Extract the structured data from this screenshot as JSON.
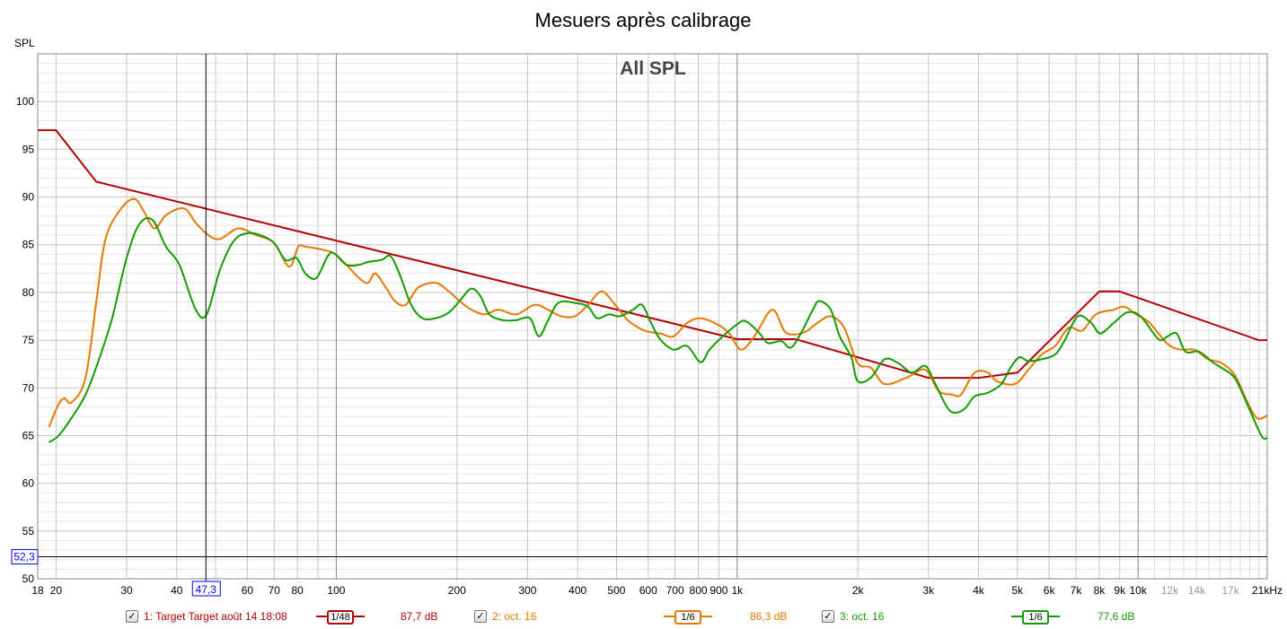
{
  "chart_data": {
    "type": "line",
    "title": "Mesuers après calibrage",
    "subtitle": "All SPL",
    "ylabel": "SPL",
    "xlabel": "Hz",
    "xscale": "log",
    "xlim": [
      18,
      21000
    ],
    "ylim": [
      50,
      105
    ],
    "grid": true,
    "y_ticks": [
      "50",
      "55",
      "60",
      "65",
      "70",
      "75",
      "80",
      "85",
      "90",
      "95",
      "100"
    ],
    "x_ticks": [
      {
        "f": 18,
        "label": "18"
      },
      {
        "f": 20,
        "label": "20"
      },
      {
        "f": 30,
        "label": "30"
      },
      {
        "f": 40,
        "label": "40"
      },
      {
        "f": 60,
        "label": "60"
      },
      {
        "f": 70,
        "label": "70"
      },
      {
        "f": 80,
        "label": "80"
      },
      {
        "f": 100,
        "label": "100"
      },
      {
        "f": 200,
        "label": "200"
      },
      {
        "f": 300,
        "label": "300"
      },
      {
        "f": 400,
        "label": "400"
      },
      {
        "f": 500,
        "label": "500"
      },
      {
        "f": 600,
        "label": "600"
      },
      {
        "f": 700,
        "label": "700"
      },
      {
        "f": 800,
        "label": "800"
      },
      {
        "f": 900,
        "label": "900"
      },
      {
        "f": 1000,
        "label": "1k"
      },
      {
        "f": 2000,
        "label": "2k"
      },
      {
        "f": 3000,
        "label": "3k"
      },
      {
        "f": 4000,
        "label": "4k"
      },
      {
        "f": 5000,
        "label": "5k"
      },
      {
        "f": 6000,
        "label": "6k"
      },
      {
        "f": 7000,
        "label": "7k"
      },
      {
        "f": 8000,
        "label": "8k"
      },
      {
        "f": 9000,
        "label": "9k"
      },
      {
        "f": 10000,
        "label": "10k"
      },
      {
        "f": 12000,
        "label": "12k",
        "muted": true
      },
      {
        "f": 14000,
        "label": "14k",
        "muted": true
      },
      {
        "f": 17000,
        "label": "17k",
        "muted": true
      },
      {
        "f": 21000,
        "label": "21kHz"
      }
    ],
    "cursor": {
      "x": 47.3,
      "y": 52.3,
      "x_label": "47,3",
      "y_label": "52,3"
    },
    "series": [
      {
        "name": "1: Target Target août 14 18:08",
        "color": "#b40000",
        "smoothing": "1/48",
        "value_label": "87,7 dB",
        "smooth": false,
        "points": [
          [
            18,
            97
          ],
          [
            20,
            97
          ],
          [
            25.2,
            91.6
          ],
          [
            1000,
            75.1
          ],
          [
            1400,
            75.1
          ],
          [
            3000,
            71.05
          ],
          [
            4000,
            71.05
          ],
          [
            5000,
            71.6
          ],
          [
            8000,
            80.1
          ],
          [
            9000,
            80.1
          ],
          [
            20000,
            75
          ],
          [
            21000,
            75
          ]
        ]
      },
      {
        "name": "2: oct. 16",
        "color": "#e87800",
        "smoothing": "1/6",
        "value_label": "86,3 dB",
        "smooth": true,
        "points": [
          [
            19.2,
            65.9
          ],
          [
            20.3,
            68.3
          ],
          [
            21,
            68.9
          ],
          [
            21.9,
            68.5
          ],
          [
            23.7,
            71.1
          ],
          [
            25.3,
            79.6
          ],
          [
            26.6,
            85.7
          ],
          [
            29.1,
            88.8
          ],
          [
            31.4,
            89.8
          ],
          [
            33.1,
            88.5
          ],
          [
            35.2,
            86.7
          ],
          [
            37.6,
            88.1
          ],
          [
            41.7,
            88.8
          ],
          [
            44.6,
            87.3
          ],
          [
            48,
            86
          ],
          [
            51.3,
            85.6
          ],
          [
            56.9,
            86.7
          ],
          [
            63.1,
            86
          ],
          [
            69.9,
            85.2
          ],
          [
            76.3,
            82.7
          ],
          [
            80.4,
            84.8
          ],
          [
            83.7,
            84.8
          ],
          [
            91.9,
            84.5
          ],
          [
            98.7,
            84.1
          ],
          [
            106,
            82.9
          ],
          [
            114,
            81.5
          ],
          [
            120,
            81
          ],
          [
            125,
            82
          ],
          [
            133,
            80.5
          ],
          [
            140,
            79.1
          ],
          [
            149,
            78.7
          ],
          [
            160,
            80.5
          ],
          [
            177,
            81
          ],
          [
            191,
            80.1
          ],
          [
            203,
            79.1
          ],
          [
            217,
            78.2
          ],
          [
            235,
            77.7
          ],
          [
            254,
            78.2
          ],
          [
            281,
            77.7
          ],
          [
            312,
            78.7
          ],
          [
            337,
            78.2
          ],
          [
            364,
            77.5
          ],
          [
            394,
            77.5
          ],
          [
            425,
            78.7
          ],
          [
            459,
            80.1
          ],
          [
            496,
            78.7
          ],
          [
            536,
            77
          ],
          [
            588,
            76
          ],
          [
            642,
            75.7
          ],
          [
            694,
            75.4
          ],
          [
            750,
            76.8
          ],
          [
            810,
            77.3
          ],
          [
            898,
            76.6
          ],
          [
            956,
            75.7
          ],
          [
            1022,
            74
          ],
          [
            1104,
            75.4
          ],
          [
            1224,
            78.2
          ],
          [
            1322,
            75.8
          ],
          [
            1466,
            75.8
          ],
          [
            1585,
            76.8
          ],
          [
            1712,
            77.5
          ],
          [
            1849,
            76.3
          ],
          [
            1998,
            72.6
          ],
          [
            2158,
            72.1
          ],
          [
            2333,
            70.4
          ],
          [
            2655,
            71.1
          ],
          [
            2943,
            71.9
          ],
          [
            3179,
            69.7
          ],
          [
            3434,
            69.3
          ],
          [
            3618,
            69.3
          ],
          [
            3909,
            71.6
          ],
          [
            4223,
            71.6
          ],
          [
            4446,
            70.7
          ],
          [
            4929,
            70.4
          ],
          [
            5326,
            71.9
          ],
          [
            5753,
            73.5
          ],
          [
            6216,
            74.4
          ],
          [
            6717,
            76.3
          ],
          [
            7257,
            76
          ],
          [
            7841,
            77.7
          ],
          [
            8696,
            78.2
          ],
          [
            9249,
            78.5
          ],
          [
            9891,
            77.7
          ],
          [
            10683,
            76.8
          ],
          [
            11846,
            74.6
          ],
          [
            12802,
            74
          ],
          [
            13828,
            74
          ],
          [
            14944,
            73
          ],
          [
            16144,
            72.6
          ],
          [
            17442,
            71.3
          ],
          [
            18846,
            68.3
          ],
          [
            19847,
            66.8
          ],
          [
            21002,
            67.1
          ]
        ]
      },
      {
        "name": "3: oct. 16",
        "color": "#139c00",
        "smoothing": "1/6",
        "value_label": "77,6 dB",
        "smooth": true,
        "points": [
          [
            19.2,
            64.3
          ],
          [
            20.3,
            65
          ],
          [
            21.9,
            66.9
          ],
          [
            23.7,
            69.3
          ],
          [
            25.6,
            73
          ],
          [
            27.6,
            77.3
          ],
          [
            29.9,
            83.4
          ],
          [
            32.2,
            87.1
          ],
          [
            34.8,
            87.6
          ],
          [
            37.6,
            84.8
          ],
          [
            40.6,
            82.9
          ],
          [
            44.6,
            78.2
          ],
          [
            47.5,
            77.7
          ],
          [
            51.3,
            82.4
          ],
          [
            55.5,
            85.4
          ],
          [
            59.9,
            86.2
          ],
          [
            64.7,
            86
          ],
          [
            69.9,
            85.2
          ],
          [
            74.7,
            83.4
          ],
          [
            79.6,
            83.6
          ],
          [
            83.7,
            82
          ],
          [
            89.1,
            81.5
          ],
          [
            95.2,
            83.8
          ],
          [
            98.7,
            84.1
          ],
          [
            106,
            82.9
          ],
          [
            114,
            82.9
          ],
          [
            120,
            83.2
          ],
          [
            129.6,
            83.4
          ],
          [
            136.5,
            83.8
          ],
          [
            143.6,
            82
          ],
          [
            153.7,
            78.7
          ],
          [
            164,
            77.3
          ],
          [
            177,
            77.3
          ],
          [
            191,
            77.9
          ],
          [
            203,
            79.1
          ],
          [
            217,
            80.4
          ],
          [
            229,
            79.6
          ],
          [
            241,
            77.7
          ],
          [
            260.6,
            77.1
          ],
          [
            281,
            77.1
          ],
          [
            304,
            77.3
          ],
          [
            320,
            75.4
          ],
          [
            337,
            77
          ],
          [
            358,
            78.9
          ],
          [
            394,
            78.9
          ],
          [
            425,
            78.5
          ],
          [
            447,
            77.3
          ],
          [
            479,
            77.7
          ],
          [
            509,
            77.5
          ],
          [
            550,
            78.2
          ],
          [
            579,
            78.7
          ],
          [
            610,
            76.8
          ],
          [
            642,
            75.1
          ],
          [
            694,
            74
          ],
          [
            750,
            74.4
          ],
          [
            810,
            72.7
          ],
          [
            853,
            74
          ],
          [
            921,
            75.4
          ],
          [
            996,
            76.6
          ],
          [
            1049,
            77
          ],
          [
            1133,
            75.8
          ],
          [
            1193,
            74.7
          ],
          [
            1288,
            74.9
          ],
          [
            1356,
            74.2
          ],
          [
            1429,
            75.4
          ],
          [
            1545,
            78.2
          ],
          [
            1601,
            79.1
          ],
          [
            1712,
            78.2
          ],
          [
            1802,
            75.4
          ],
          [
            1926,
            73.2
          ],
          [
            1998,
            70.7
          ],
          [
            2158,
            71.1
          ],
          [
            2333,
            73
          ],
          [
            2521,
            72.6
          ],
          [
            2724,
            71.6
          ],
          [
            2943,
            72.3
          ],
          [
            3098,
            70.7
          ],
          [
            3347,
            67.9
          ],
          [
            3523,
            67.4
          ],
          [
            3712,
            67.9
          ],
          [
            3909,
            69.1
          ],
          [
            4223,
            69.5
          ],
          [
            4561,
            70.4
          ],
          [
            4804,
            72.1
          ],
          [
            5057,
            73.2
          ],
          [
            5326,
            72.8
          ],
          [
            5753,
            73
          ],
          [
            6216,
            73.5
          ],
          [
            6547,
            74.9
          ],
          [
            7073,
            77.5
          ],
          [
            7642,
            76.8
          ],
          [
            8045,
            75.7
          ],
          [
            8696,
            76.8
          ],
          [
            9393,
            77.9
          ],
          [
            10148,
            77.5
          ],
          [
            11250,
            75.1
          ],
          [
            11846,
            75.4
          ],
          [
            12477,
            75.7
          ],
          [
            13135,
            73.8
          ],
          [
            14188,
            73.8
          ],
          [
            15333,
            72.7
          ],
          [
            16144,
            72.1
          ],
          [
            17442,
            71
          ],
          [
            18846,
            68
          ],
          [
            20363,
            64.9
          ],
          [
            21002,
            64.8
          ]
        ]
      }
    ]
  }
}
